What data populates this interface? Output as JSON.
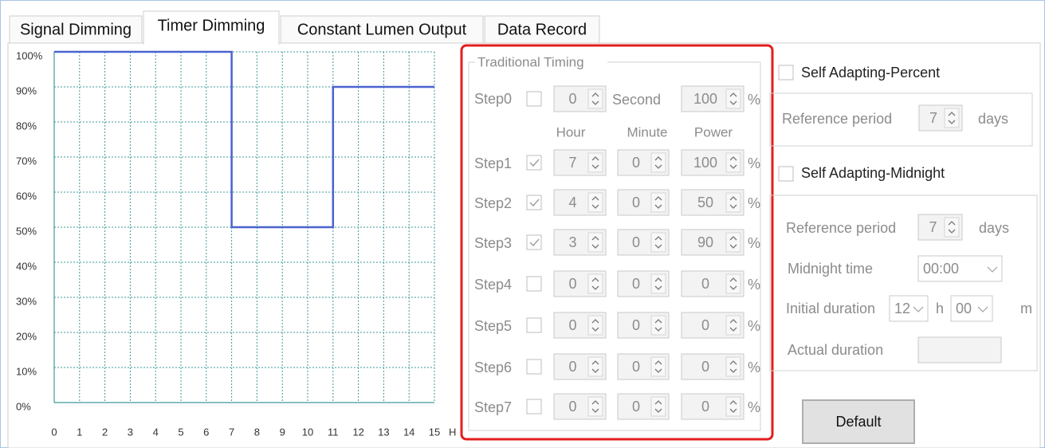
{
  "tabs": [
    "Signal Dimming",
    "Timer Dimming",
    "Constant Lumen Output",
    "Data Record"
  ],
  "selected_tab": 1,
  "chart_data": {
    "type": "line",
    "x": [
      0,
      7,
      7,
      11,
      11,
      15
    ],
    "values": [
      100,
      100,
      50,
      50,
      90,
      90
    ],
    "color": "#4a63cf",
    "xlim": [
      0,
      15
    ],
    "ylim": [
      0,
      100
    ],
    "xticks": [
      0,
      1,
      2,
      3,
      4,
      5,
      6,
      7,
      8,
      9,
      10,
      11,
      12,
      13,
      14,
      15
    ],
    "yticks": [
      {
        "value": 0,
        "label": "0%"
      },
      {
        "value": 10,
        "label": "10%"
      },
      {
        "value": 20,
        "label": "20%"
      },
      {
        "value": 30,
        "label": "30%"
      },
      {
        "value": 40,
        "label": "40%"
      },
      {
        "value": 50,
        "label": "50%"
      },
      {
        "value": 60,
        "label": "60%"
      },
      {
        "value": 70,
        "label": "70%"
      },
      {
        "value": 80,
        "label": "80%"
      },
      {
        "value": 90,
        "label": "90%"
      },
      {
        "value": 100,
        "label": "100%"
      }
    ],
    "xlabel": "H",
    "grid": true
  },
  "traditional_timing": {
    "title": "Traditional Timing",
    "step0": {
      "label": "Step0",
      "checked": false,
      "value": 0,
      "unit": "Second",
      "power": 100,
      "power_unit": "%"
    },
    "headers": [
      "Hour",
      "Minute",
      "Power"
    ],
    "steps": [
      {
        "label": "Step1",
        "checked": true,
        "hour": 7,
        "minute": 0,
        "power": 100,
        "unit": "%"
      },
      {
        "label": "Step2",
        "checked": true,
        "hour": 4,
        "minute": 0,
        "power": 50,
        "unit": "%"
      },
      {
        "label": "Step3",
        "checked": true,
        "hour": 3,
        "minute": 0,
        "power": 90,
        "unit": "%"
      },
      {
        "label": "Step4",
        "checked": false,
        "hour": 0,
        "minute": 0,
        "power": 0,
        "unit": "%"
      },
      {
        "label": "Step5",
        "checked": false,
        "hour": 0,
        "minute": 0,
        "power": 0,
        "unit": "%"
      },
      {
        "label": "Step6",
        "checked": false,
        "hour": 0,
        "minute": 0,
        "power": 0,
        "unit": "%"
      },
      {
        "label": "Step7",
        "checked": false,
        "hour": 0,
        "minute": 0,
        "power": 0,
        "unit": "%"
      }
    ]
  },
  "self_adapting_percent": {
    "label": "Self Adapting-Percent",
    "checked": false,
    "reference_period_label": "Reference period",
    "reference_period": 7,
    "days": "days"
  },
  "self_adapting_midnight": {
    "label": "Self Adapting-Midnight",
    "checked": false,
    "reference_period_label": "Reference period",
    "reference_period": 7,
    "days": "days",
    "midnight_time_label": "Midnight time",
    "midnight_time": "00:00",
    "initial_duration_label": "Initial duration",
    "initial_hours": "12",
    "hours_unit": "h",
    "initial_minutes": "00",
    "minutes_unit": "m",
    "actual_duration_label": "Actual duration"
  },
  "default_button": "Default"
}
